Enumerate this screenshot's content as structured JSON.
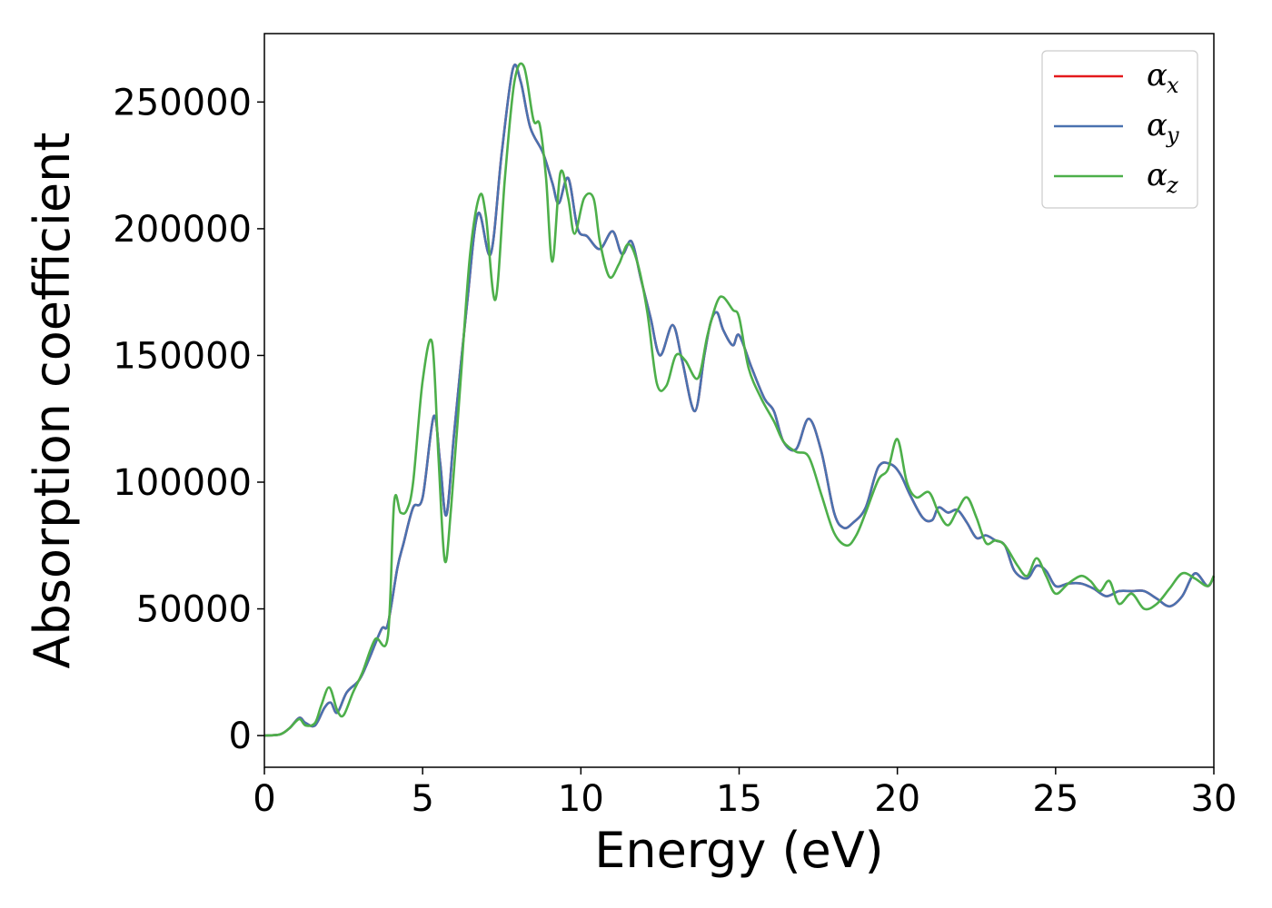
{
  "chart_data": {
    "type": "line",
    "title": "",
    "xlabel": "Energy (eV)",
    "ylabel": "Absorption coefficient",
    "xlim": [
      0,
      30
    ],
    "ylim": [
      -12500,
      277000
    ],
    "xticks": [
      0,
      5,
      10,
      15,
      20,
      25,
      30
    ],
    "yticks": [
      0,
      50000,
      100000,
      150000,
      200000,
      250000
    ],
    "grid": false,
    "legend_position": "top-right",
    "series": [
      {
        "symbol": "α",
        "subscript": "x",
        "color": "#e41a1c",
        "x": [
          0,
          0.5,
          0.8,
          1.1,
          1.3,
          1.6,
          1.9,
          2.1,
          2.3,
          2.6,
          3.0,
          3.3,
          3.7,
          3.9,
          4.2,
          4.4,
          4.7,
          5.0,
          5.35,
          5.55,
          5.75,
          6.0,
          6.4,
          6.75,
          7.15,
          7.5,
          7.85,
          8.1,
          8.4,
          8.8,
          9.1,
          9.3,
          9.6,
          9.9,
          10.2,
          10.6,
          11.0,
          11.3,
          11.6,
          11.9,
          12.2,
          12.5,
          12.9,
          13.2,
          13.6,
          13.9,
          14.1,
          14.3,
          14.5,
          14.8,
          15.0,
          15.4,
          15.8,
          16.1,
          16.4,
          16.8,
          17.2,
          17.6,
          18.0,
          18.3,
          18.6,
          19.0,
          19.4,
          19.8,
          20.1,
          20.4,
          20.8,
          21.1,
          21.3,
          21.6,
          21.9,
          22.2,
          22.5,
          22.8,
          23.1,
          23.4,
          23.7,
          24.1,
          24.4,
          24.7,
          25.0,
          25.4,
          25.8,
          26.2,
          26.6,
          27.0,
          27.4,
          27.8,
          28.2,
          28.6,
          29.0,
          29.4,
          29.8,
          30.0
        ],
        "y": [
          0,
          500,
          3000,
          7000,
          5000,
          4000,
          11000,
          13000,
          9000,
          17000,
          22000,
          30000,
          42000,
          44000,
          66000,
          76000,
          90000,
          94000,
          126000,
          108000,
          87000,
          120000,
          170000,
          206000,
          190000,
          230000,
          263000,
          258000,
          240000,
          230000,
          218000,
          210000,
          220000,
          200000,
          197000,
          192000,
          199000,
          190000,
          195000,
          180000,
          165000,
          150000,
          162000,
          148000,
          128000,
          150000,
          163000,
          167000,
          160000,
          154000,
          158000,
          145000,
          133000,
          128000,
          116000,
          113000,
          125000,
          112000,
          88000,
          82000,
          84000,
          90000,
          106000,
          107000,
          103000,
          95000,
          86000,
          85000,
          90000,
          88000,
          89000,
          84000,
          78000,
          79000,
          77000,
          75000,
          65000,
          62000,
          67000,
          65000,
          59000,
          60000,
          60000,
          58000,
          55000,
          57000,
          57000,
          57000,
          54000,
          51000,
          55000,
          64000,
          59000,
          63000
        ]
      },
      {
        "symbol": "α",
        "subscript": "y",
        "color": "#4a72b0",
        "x": [
          0,
          0.5,
          0.8,
          1.1,
          1.3,
          1.6,
          1.9,
          2.1,
          2.3,
          2.6,
          3.0,
          3.3,
          3.7,
          3.9,
          4.2,
          4.4,
          4.7,
          5.0,
          5.35,
          5.55,
          5.75,
          6.0,
          6.4,
          6.75,
          7.15,
          7.5,
          7.85,
          8.1,
          8.4,
          8.8,
          9.1,
          9.3,
          9.6,
          9.9,
          10.2,
          10.6,
          11.0,
          11.3,
          11.6,
          11.9,
          12.2,
          12.5,
          12.9,
          13.2,
          13.6,
          13.9,
          14.1,
          14.3,
          14.5,
          14.8,
          15.0,
          15.4,
          15.8,
          16.1,
          16.4,
          16.8,
          17.2,
          17.6,
          18.0,
          18.3,
          18.6,
          19.0,
          19.4,
          19.8,
          20.1,
          20.4,
          20.8,
          21.1,
          21.3,
          21.6,
          21.9,
          22.2,
          22.5,
          22.8,
          23.1,
          23.4,
          23.7,
          24.1,
          24.4,
          24.7,
          25.0,
          25.4,
          25.8,
          26.2,
          26.6,
          27.0,
          27.4,
          27.8,
          28.2,
          28.6,
          29.0,
          29.4,
          29.8,
          30.0
        ],
        "y": [
          0,
          500,
          3000,
          7000,
          5000,
          4000,
          11000,
          13000,
          9000,
          17000,
          22000,
          30000,
          42000,
          44000,
          66000,
          76000,
          90000,
          94000,
          126000,
          108000,
          87000,
          120000,
          170000,
          206000,
          190000,
          230000,
          263000,
          258000,
          240000,
          230000,
          218000,
          210000,
          220000,
          200000,
          197000,
          192000,
          199000,
          190000,
          195000,
          180000,
          165000,
          150000,
          162000,
          148000,
          128000,
          150000,
          163000,
          167000,
          160000,
          154000,
          158000,
          145000,
          133000,
          128000,
          116000,
          113000,
          125000,
          112000,
          88000,
          82000,
          84000,
          90000,
          106000,
          107000,
          103000,
          95000,
          86000,
          85000,
          90000,
          88000,
          89000,
          84000,
          78000,
          79000,
          77000,
          75000,
          65000,
          62000,
          67000,
          65000,
          59000,
          60000,
          60000,
          58000,
          55000,
          57000,
          57000,
          57000,
          54000,
          51000,
          55000,
          64000,
          59000,
          63000
        ]
      },
      {
        "symbol": "α",
        "subscript": "z",
        "color": "#4daf4a",
        "x": [
          0,
          0.5,
          0.8,
          1.1,
          1.3,
          1.6,
          1.8,
          2.05,
          2.3,
          2.5,
          2.8,
          3.1,
          3.5,
          3.9,
          4.1,
          4.3,
          4.5,
          4.7,
          5.0,
          5.3,
          5.5,
          5.7,
          5.9,
          6.2,
          6.5,
          6.8,
          7.0,
          7.3,
          7.6,
          7.9,
          8.2,
          8.5,
          8.7,
          8.9,
          9.1,
          9.35,
          9.6,
          9.8,
          10.1,
          10.4,
          10.6,
          10.9,
          11.2,
          11.5,
          11.8,
          12.1,
          12.4,
          12.7,
          13.0,
          13.3,
          13.7,
          14.0,
          14.3,
          14.5,
          14.8,
          15.0,
          15.3,
          15.7,
          16.1,
          16.4,
          16.8,
          17.2,
          17.6,
          18.0,
          18.4,
          18.7,
          19.0,
          19.4,
          19.7,
          20.0,
          20.3,
          20.6,
          21.0,
          21.3,
          21.6,
          21.9,
          22.2,
          22.5,
          22.8,
          23.1,
          23.4,
          23.8,
          24.1,
          24.4,
          24.7,
          25.0,
          25.4,
          25.8,
          26.1,
          26.4,
          26.7,
          27.0,
          27.4,
          27.8,
          28.2,
          28.6,
          29.0,
          29.4,
          29.8,
          30.0
        ],
        "y": [
          0,
          500,
          3000,
          6500,
          4000,
          5000,
          12000,
          19000,
          10000,
          8000,
          17000,
          25000,
          38000,
          39000,
          92000,
          88000,
          89000,
          100000,
          140000,
          155000,
          110000,
          69000,
          90000,
          140000,
          190000,
          213000,
          205000,
          172000,
          220000,
          258000,
          264000,
          243000,
          241000,
          220000,
          187000,
          222000,
          212000,
          198000,
          212000,
          212000,
          195000,
          181000,
          186000,
          194000,
          186000,
          167000,
          139000,
          138000,
          150000,
          148000,
          141000,
          158000,
          171000,
          173000,
          168000,
          165000,
          145000,
          133000,
          124000,
          116000,
          112000,
          110000,
          95000,
          80000,
          75000,
          79000,
          88000,
          101000,
          105000,
          117000,
          100000,
          94000,
          96000,
          88000,
          83000,
          89000,
          94000,
          86000,
          76000,
          77000,
          75000,
          67000,
          63000,
          70000,
          63000,
          56000,
          60000,
          63000,
          61000,
          57000,
          61000,
          52000,
          56000,
          50000,
          52000,
          58000,
          64000,
          62000,
          59000,
          63000
        ]
      }
    ]
  }
}
